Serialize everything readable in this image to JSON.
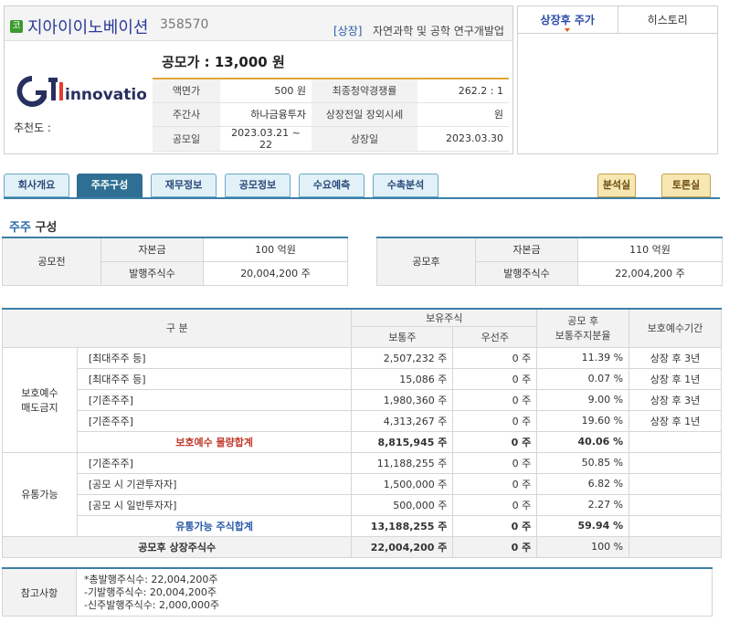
{
  "company": {
    "badge": "코",
    "name": "지아이이노베이션",
    "code": "358570",
    "market": "[상장]",
    "sector": "자연과학 및 공학 연구개발업",
    "logo_text": "innovation",
    "recommend_label": "추천도 :",
    "ipo_price": "공모가 : 13,000 원",
    "info": {
      "face_value_label": "액면가",
      "face_value": "500 원",
      "competition_label": "최종청약경쟁률",
      "competition": "262.2 : 1",
      "underwriter_label": "주간사",
      "underwriter": "하나금융투자",
      "otc_label": "상장전일 장외시세",
      "otc": "원",
      "ipo_date_label": "공모일",
      "ipo_date": "2023.03.21 ~ 22",
      "listing_date_label": "상장일",
      "listing_date": "2023.03.30"
    }
  },
  "chart_tabs": [
    "상장후 주가",
    "히스토리"
  ],
  "main_tabs": [
    "회사개요",
    "주주구성",
    "재무정보",
    "공모정보",
    "수요예측",
    "수촉분석"
  ],
  "side_tabs": [
    "분석실",
    "토론실"
  ],
  "section": {
    "title_hl": "주주",
    "title_rest": " 구성"
  },
  "before": {
    "label": "공모전",
    "capital_label": "자본금",
    "capital": "100 억원",
    "shares_label": "발행주식수",
    "shares": "20,004,200 주"
  },
  "after": {
    "label": "공모후",
    "capital_label": "자본금",
    "capital": "110 억원",
    "shares_label": "발행주식수",
    "shares": "22,004,200 주"
  },
  "table": {
    "h_category": "구    분",
    "h_holding": "보유주식",
    "h_common": "보통주",
    "h_preferred": "우선주",
    "h_ratio_line1": "공모 후",
    "h_ratio_line2": "보통주지분율",
    "h_lockup": "보호예수기간",
    "group_lock_line1": "보호예수",
    "group_lock_line2": "매도금지",
    "group_float": "유통가능",
    "lock_rows": [
      {
        "item": "[최대주주 등]",
        "common": "2,507,232 주",
        "pref": "0 주",
        "ratio": "11.39 %",
        "period": "상장 후 3년"
      },
      {
        "item": "[최대주주 등]",
        "common": "15,086 주",
        "pref": "0 주",
        "ratio": "0.07 %",
        "period": "상장 후 1년"
      },
      {
        "item": "[기존주주]",
        "common": "1,980,360 주",
        "pref": "0 주",
        "ratio": "9.00 %",
        "period": "상장 후 3년"
      },
      {
        "item": "[기존주주]",
        "common": "4,313,267 주",
        "pref": "0 주",
        "ratio": "19.60 %",
        "period": "상장 후 1년"
      }
    ],
    "lock_total": {
      "label": "보호예수 물량합계",
      "common": "8,815,945 주",
      "pref": "0 주",
      "ratio": "40.06 %"
    },
    "float_rows": [
      {
        "item": "[기존주주]",
        "common": "11,188,255 주",
        "pref": "0 주",
        "ratio": "50.85 %"
      },
      {
        "item": "[공모 시 기관투자자]",
        "common": "1,500,000 주",
        "pref": "0 주",
        "ratio": "6.82 %"
      },
      {
        "item": "[공모 시 일반투자자]",
        "common": "500,000 주",
        "pref": "0 주",
        "ratio": "2.27 %"
      }
    ],
    "float_total": {
      "label": "유통가능 주식합계",
      "common": "13,188,255 주",
      "pref": "0 주",
      "ratio": "59.94 %"
    },
    "grand_total": {
      "label": "공모후 상장주식수",
      "common": "22,004,200 주",
      "pref": "0 주",
      "ratio": "100 %"
    }
  },
  "notes": {
    "label": "참고사항",
    "line1": "*총발행주식수: 22,004,200주",
    "line2": "-기발행주식수: 20,004,200주",
    "line3": "-신주발행주식수: 2,000,000주"
  },
  "colors": {
    "accent": "#3b7fa7",
    "orange": "#e3a634",
    "red": "#c0392b",
    "brand": "#2b3a9a"
  }
}
